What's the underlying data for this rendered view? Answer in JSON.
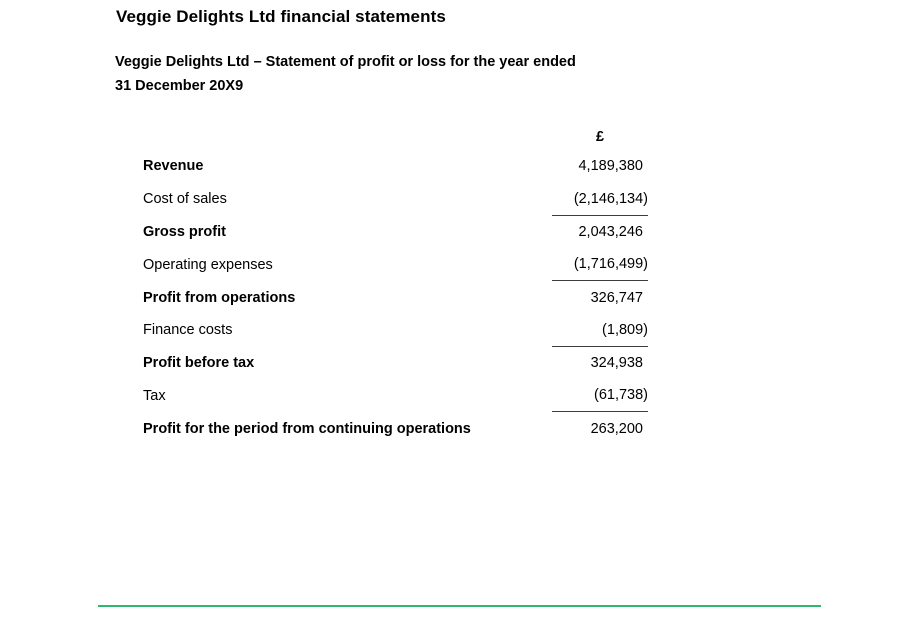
{
  "page": {
    "title": "Veggie Delights Ltd financial statements",
    "subtitle_line1": "Veggie Delights Ltd – Statement of profit or loss for the year ended",
    "subtitle_line2": "31 December 20X9"
  },
  "statement": {
    "currency_header": "£",
    "rows": [
      {
        "label": "Revenue",
        "value": "4,189,380",
        "bold": true,
        "rule_below": false
      },
      {
        "label": "Cost of sales",
        "value": "(2,146,134)",
        "bold": false,
        "rule_below": true
      },
      {
        "label": "Gross profit",
        "value": "2,043,246",
        "bold": true,
        "rule_below": false
      },
      {
        "label": "Operating expenses",
        "value": "(1,716,499)",
        "bold": false,
        "rule_below": true
      },
      {
        "label": "Profit from operations",
        "value": "326,747",
        "bold": true,
        "rule_below": false
      },
      {
        "label": "Finance costs",
        "value": "(1,809)",
        "bold": false,
        "rule_below": true
      },
      {
        "label": "Profit before tax",
        "value": "324,938",
        "bold": true,
        "rule_below": false
      },
      {
        "label": "Tax",
        "value": "(61,738)",
        "bold": false,
        "rule_below": true
      },
      {
        "label": "Profit for the period from continuing operations",
        "value": "263,200",
        "bold": true,
        "rule_below": false
      }
    ]
  },
  "divider": {
    "color": "#2fb673"
  }
}
